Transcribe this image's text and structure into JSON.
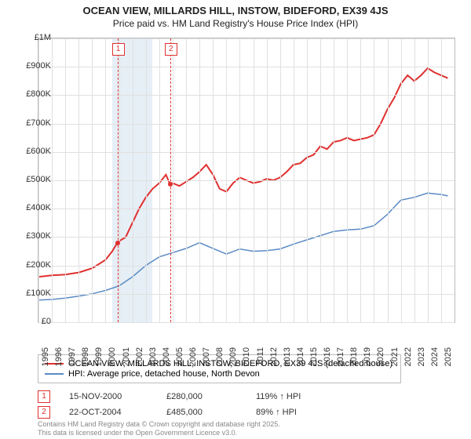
{
  "title": "OCEAN VIEW, MILLARDS HILL, INSTOW, BIDEFORD, EX39 4JS",
  "subtitle": "Price paid vs. HM Land Registry's House Price Index (HPI)",
  "chart": {
    "type": "line",
    "background_color": "#ffffff",
    "grid_color": "#e0e0e0",
    "border_color": "#bbbbbb",
    "xlim": [
      1995,
      2026
    ],
    "ylim": [
      0,
      1000000
    ],
    "x_ticks": [
      1995,
      1996,
      1997,
      1998,
      1999,
      2000,
      2001,
      2002,
      2003,
      2004,
      2005,
      2006,
      2007,
      2008,
      2009,
      2010,
      2011,
      2012,
      2013,
      2014,
      2015,
      2016,
      2017,
      2018,
      2019,
      2020,
      2021,
      2022,
      2023,
      2024,
      2025
    ],
    "y_ticks": [
      {
        "v": 0,
        "label": "£0"
      },
      {
        "v": 100000,
        "label": "£100K"
      },
      {
        "v": 200000,
        "label": "£200K"
      },
      {
        "v": 300000,
        "label": "£300K"
      },
      {
        "v": 400000,
        "label": "£400K"
      },
      {
        "v": 500000,
        "label": "£500K"
      },
      {
        "v": 600000,
        "label": "£600K"
      },
      {
        "v": 700000,
        "label": "£700K"
      },
      {
        "v": 800000,
        "label": "£800K"
      },
      {
        "v": 900000,
        "label": "£900K"
      },
      {
        "v": 1000000,
        "label": "£1M"
      }
    ],
    "shaded_band": {
      "start": 2000.5,
      "end": 2003.5,
      "color": "#d6e4f0"
    },
    "series": [
      {
        "name": "address",
        "color": "#e03030",
        "line_width": 2,
        "label": "OCEAN VIEW, MILLARDS HILL, INSTOW, BIDEFORD, EX39 4JS (detached house)",
        "data": [
          [
            1995,
            160000
          ],
          [
            1996,
            165000
          ],
          [
            1997,
            168000
          ],
          [
            1998,
            175000
          ],
          [
            1999,
            190000
          ],
          [
            2000,
            220000
          ],
          [
            2000.5,
            250000
          ],
          [
            2000.88,
            280000
          ],
          [
            2001,
            285000
          ],
          [
            2001.5,
            300000
          ],
          [
            2002,
            350000
          ],
          [
            2002.5,
            400000
          ],
          [
            2003,
            440000
          ],
          [
            2003.5,
            470000
          ],
          [
            2004,
            490000
          ],
          [
            2004.5,
            520000
          ],
          [
            2004.81,
            485000
          ],
          [
            2005,
            490000
          ],
          [
            2005.5,
            480000
          ],
          [
            2006,
            495000
          ],
          [
            2006.5,
            510000
          ],
          [
            2007,
            530000
          ],
          [
            2007.5,
            555000
          ],
          [
            2008,
            520000
          ],
          [
            2008.5,
            470000
          ],
          [
            2009,
            460000
          ],
          [
            2009.5,
            490000
          ],
          [
            2010,
            510000
          ],
          [
            2010.5,
            500000
          ],
          [
            2011,
            490000
          ],
          [
            2011.5,
            495000
          ],
          [
            2012,
            505000
          ],
          [
            2012.5,
            500000
          ],
          [
            2013,
            510000
          ],
          [
            2013.5,
            530000
          ],
          [
            2014,
            555000
          ],
          [
            2014.5,
            560000
          ],
          [
            2015,
            580000
          ],
          [
            2015.5,
            590000
          ],
          [
            2016,
            620000
          ],
          [
            2016.5,
            610000
          ],
          [
            2017,
            635000
          ],
          [
            2017.5,
            640000
          ],
          [
            2018,
            650000
          ],
          [
            2018.5,
            640000
          ],
          [
            2019,
            645000
          ],
          [
            2019.5,
            650000
          ],
          [
            2020,
            660000
          ],
          [
            2020.5,
            700000
          ],
          [
            2021,
            750000
          ],
          [
            2021.5,
            790000
          ],
          [
            2022,
            840000
          ],
          [
            2022.5,
            870000
          ],
          [
            2023,
            850000
          ],
          [
            2023.5,
            870000
          ],
          [
            2024,
            895000
          ],
          [
            2024.5,
            880000
          ],
          [
            2025,
            870000
          ],
          [
            2025.5,
            860000
          ]
        ]
      },
      {
        "name": "hpi",
        "color": "#5b8bc4",
        "line_width": 1.5,
        "label": "HPI: Average price, detached house, North Devon",
        "data": [
          [
            1995,
            78000
          ],
          [
            1996,
            80000
          ],
          [
            1997,
            85000
          ],
          [
            1998,
            92000
          ],
          [
            1999,
            100000
          ],
          [
            2000,
            112000
          ],
          [
            2001,
            128000
          ],
          [
            2002,
            160000
          ],
          [
            2003,
            200000
          ],
          [
            2004,
            230000
          ],
          [
            2005,
            245000
          ],
          [
            2006,
            260000
          ],
          [
            2007,
            280000
          ],
          [
            2008,
            260000
          ],
          [
            2009,
            240000
          ],
          [
            2010,
            258000
          ],
          [
            2011,
            250000
          ],
          [
            2012,
            252000
          ],
          [
            2013,
            258000
          ],
          [
            2014,
            275000
          ],
          [
            2015,
            290000
          ],
          [
            2016,
            305000
          ],
          [
            2017,
            320000
          ],
          [
            2018,
            325000
          ],
          [
            2019,
            328000
          ],
          [
            2020,
            340000
          ],
          [
            2021,
            380000
          ],
          [
            2022,
            430000
          ],
          [
            2023,
            440000
          ],
          [
            2024,
            455000
          ],
          [
            2025,
            450000
          ],
          [
            2025.5,
            445000
          ]
        ]
      }
    ],
    "markers": [
      {
        "n": "1",
        "x": 2000.88,
        "y": 280000
      },
      {
        "n": "2",
        "x": 2004.81,
        "y": 485000
      }
    ],
    "marker_vlines_color": "#e03030"
  },
  "legend": {
    "border_color": "#bbbbbb",
    "items": [
      {
        "color": "#e03030",
        "width": 2,
        "label": "OCEAN VIEW, MILLARDS HILL, INSTOW, BIDEFORD, EX39 4JS (detached house)"
      },
      {
        "color": "#5b8bc4",
        "width": 1.5,
        "label": "HPI: Average price, detached house, North Devon"
      }
    ]
  },
  "events": [
    {
      "n": "1",
      "date": "15-NOV-2000",
      "price": "£280,000",
      "hpi": "119% ↑ HPI"
    },
    {
      "n": "2",
      "date": "22-OCT-2004",
      "price": "£485,000",
      "hpi": "89% ↑ HPI"
    }
  ],
  "footer_line1": "Contains HM Land Registry data © Crown copyright and database right 2025.",
  "footer_line2": "This data is licensed under the Open Government Licence v3.0."
}
